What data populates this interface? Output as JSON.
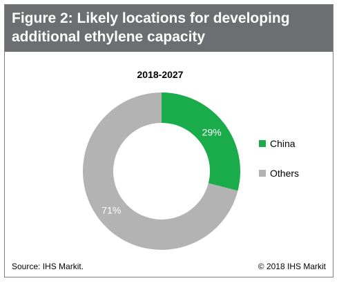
{
  "figure": {
    "title": "Figure 2: Likely locations for developing additional ethylene capacity",
    "source": "Source: IHS Markit.",
    "copyright": "© 2018 IHS Markit"
  },
  "chart_data": {
    "type": "pie",
    "subtype": "donut",
    "title": "2018-2027",
    "categories": [
      "China",
      "Others"
    ],
    "values": [
      29,
      71
    ],
    "labels": [
      "29%",
      "71%"
    ],
    "colors": [
      "#1aab4b",
      "#b3b3b3"
    ],
    "legend_position": "right",
    "start_angle_degrees": 0,
    "direction": "clockwise"
  }
}
